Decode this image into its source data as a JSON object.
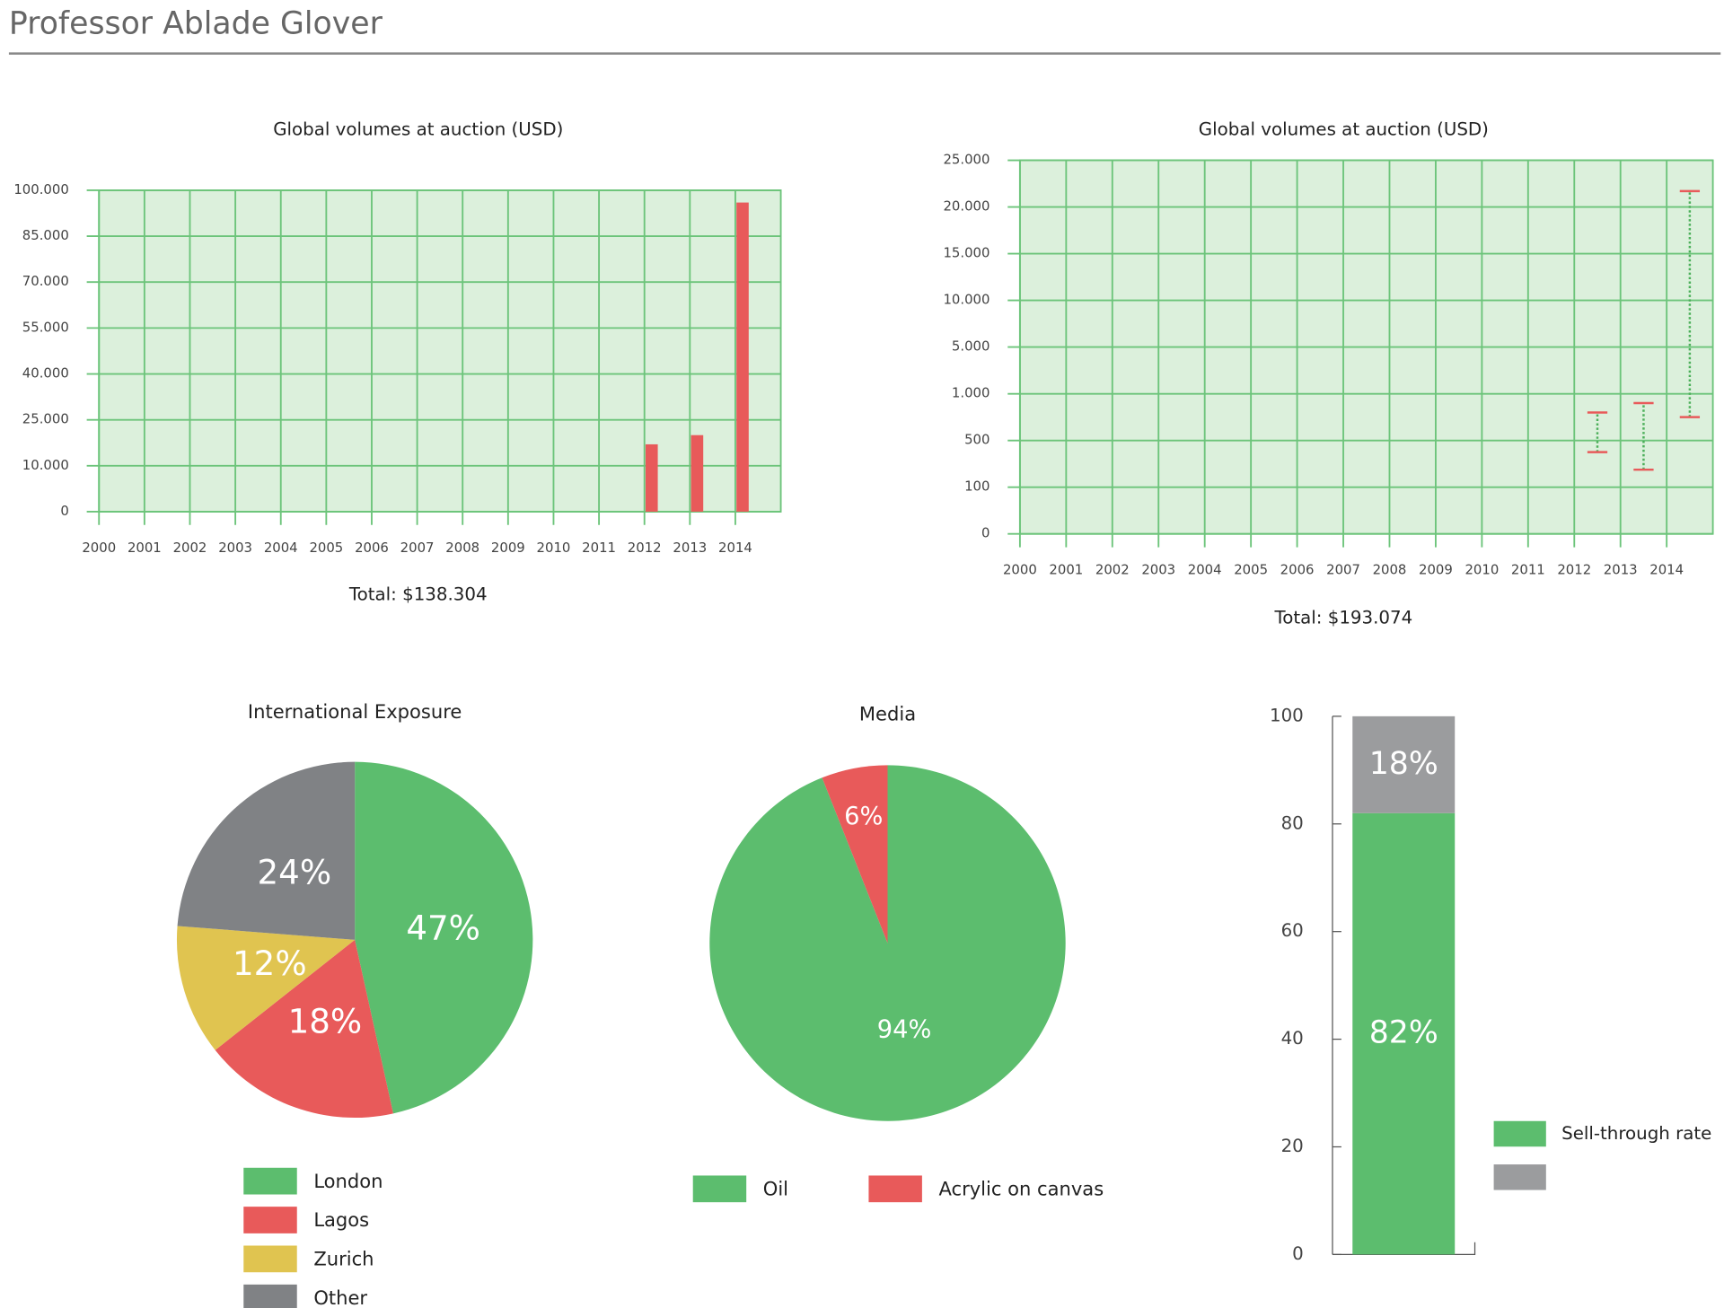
{
  "header": {
    "title": "Professor Ablade Glover"
  },
  "chart_data": [
    {
      "type": "bar",
      "title": "Global volumes at auction (USD)",
      "categories": [
        "2000",
        "2001",
        "2002",
        "2003",
        "2004",
        "2005",
        "2006",
        "2007",
        "2008",
        "2009",
        "2010",
        "2011",
        "2012",
        "2013",
        "2014"
      ],
      "values": [
        null,
        null,
        null,
        null,
        null,
        null,
        null,
        null,
        null,
        null,
        null,
        null,
        17000,
        20000,
        96000
      ],
      "color": "#e85a5a",
      "ylim": [
        0,
        100000
      ],
      "yticks": [
        0,
        {
          "value": 10000,
          "label": "10.000"
        },
        {
          "value": 25000,
          "label": "25.000"
        },
        {
          "value": 40000,
          "label": "40.000"
        },
        {
          "value": 55000,
          "label": "55.000"
        },
        {
          "value": 70000,
          "label": "70.000"
        },
        {
          "value": 85000,
          "label": "85.000"
        },
        {
          "value": 100000,
          "label": "100.000"
        }
      ],
      "grid": true,
      "total_label": "Total: $138.304"
    },
    {
      "type": "range",
      "title": "Global volumes at auction (USD)",
      "categories": [
        "2000",
        "2001",
        "2002",
        "2003",
        "2004",
        "2005",
        "2006",
        "2007",
        "2008",
        "2009",
        "2010",
        "2011",
        "2012",
        "2013",
        "2014"
      ],
      "low": [
        null,
        null,
        null,
        null,
        null,
        null,
        null,
        null,
        null,
        null,
        null,
        null,
        400,
        250,
        750
      ],
      "high": [
        null,
        null,
        null,
        null,
        null,
        null,
        null,
        null,
        null,
        null,
        null,
        null,
        800,
        900,
        21700
      ],
      "color": "#e85a5a",
      "line_color": "#4caf5a",
      "ylim": [
        0,
        25000
      ],
      "yticks": [
        0,
        100,
        500,
        {
          "value": 1000,
          "label": "1.000"
        },
        {
          "value": 5000,
          "label": "5.000"
        },
        {
          "value": 10000,
          "label": "10.000"
        },
        {
          "value": 15000,
          "label": "15.000"
        },
        {
          "value": 20000,
          "label": "20.000"
        },
        {
          "value": 25000,
          "label": "25.000"
        }
      ],
      "grid": true,
      "total_label": "Total: $193.074"
    },
    {
      "type": "pie",
      "title": "International Exposure",
      "categories": [
        "London",
        "Lagos",
        "Zurich",
        "Other"
      ],
      "values": [
        47,
        18,
        12,
        24
      ],
      "value_labels": [
        "47%",
        "18%",
        "12%",
        "24%"
      ],
      "colors": [
        "#5cbd6e",
        "#e85a5a",
        "#e0c450",
        "#808285"
      ]
    },
    {
      "type": "pie",
      "title": "Media",
      "categories": [
        "Oil",
        "Acrylic on canvas"
      ],
      "values": [
        94,
        6
      ],
      "value_labels": [
        "94%",
        "6%"
      ],
      "colors": [
        "#5cbd6e",
        "#e85a5a"
      ]
    },
    {
      "type": "stacked_bar",
      "series": [
        {
          "name": "Sell-through rate",
          "color": "#5cbd6e",
          "values": [
            82
          ],
          "value_labels": [
            "82%"
          ]
        },
        {
          "color": "#9b9c9e",
          "values": [
            18
          ],
          "value_labels": [
            "18%"
          ]
        }
      ],
      "ylim": [
        0,
        100
      ],
      "yticks": [
        0,
        20,
        40,
        60,
        80,
        100
      ]
    }
  ]
}
